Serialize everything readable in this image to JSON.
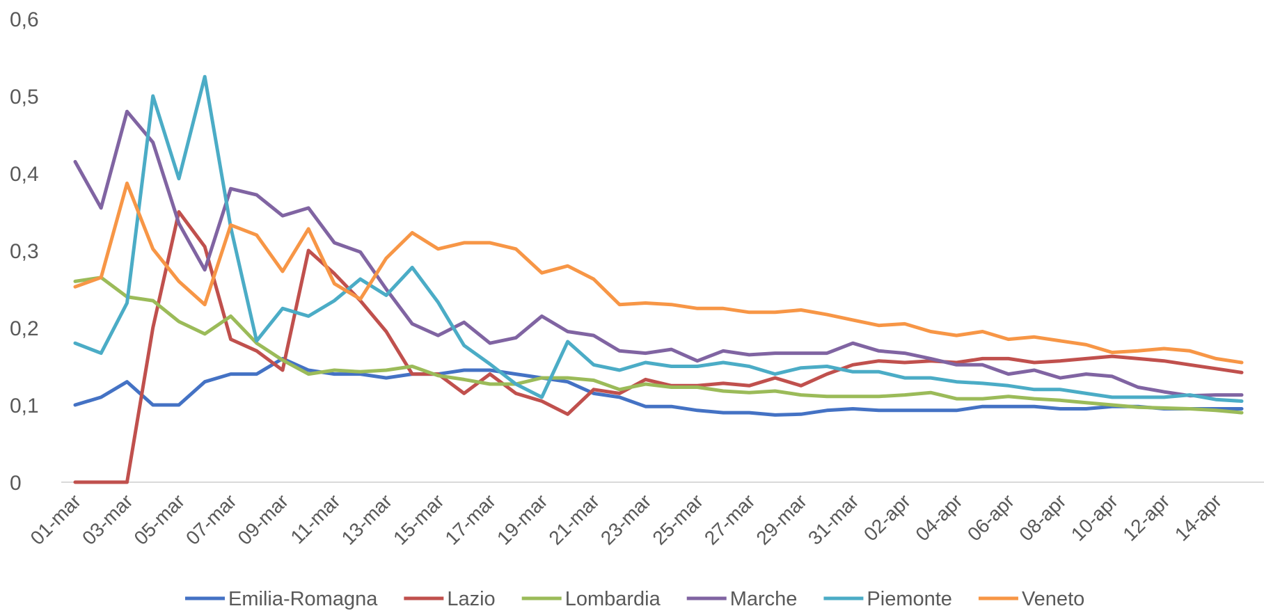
{
  "chart_data": {
    "type": "line",
    "title": "",
    "xlabel": "",
    "ylabel": "",
    "ylim": [
      0,
      0.6
    ],
    "yticks": [
      "0",
      "0,1",
      "0,2",
      "0,3",
      "0,4",
      "0,5",
      "0,6"
    ],
    "grid": false,
    "legend": "bottom",
    "x": [
      "01-mar",
      "02-mar",
      "03-mar",
      "04-mar",
      "05-mar",
      "06-mar",
      "07-mar",
      "08-mar",
      "09-mar",
      "10-mar",
      "11-mar",
      "12-mar",
      "13-mar",
      "14-mar",
      "15-mar",
      "16-mar",
      "17-mar",
      "18-mar",
      "19-mar",
      "20-mar",
      "21-mar",
      "22-mar",
      "23-mar",
      "24-mar",
      "25-mar",
      "26-mar",
      "27-mar",
      "28-mar",
      "29-mar",
      "30-mar",
      "31-mar",
      "01-apr",
      "02-apr",
      "03-apr",
      "04-apr",
      "05-apr",
      "06-apr",
      "07-apr",
      "08-apr",
      "09-apr",
      "10-apr",
      "11-apr",
      "12-apr",
      "13-apr",
      "14-apr",
      "15-apr"
    ],
    "xtick_labels": [
      "01-mar",
      "03-mar",
      "05-mar",
      "07-mar",
      "09-mar",
      "11-mar",
      "13-mar",
      "15-mar",
      "17-mar",
      "19-mar",
      "21-mar",
      "23-mar",
      "25-mar",
      "27-mar",
      "29-mar",
      "31-mar",
      "02-apr",
      "04-apr",
      "06-apr",
      "08-apr",
      "10-apr",
      "12-apr",
      "14-apr"
    ],
    "series": [
      {
        "name": "Emilia-Romagna",
        "color": "#4472C4",
        "values": [
          0.1,
          0.11,
          0.13,
          0.1,
          0.1,
          0.13,
          0.14,
          0.14,
          0.16,
          0.145,
          0.14,
          0.14,
          0.135,
          0.14,
          0.14,
          0.145,
          0.145,
          0.14,
          0.135,
          0.13,
          0.115,
          0.11,
          0.098,
          0.098,
          0.093,
          0.09,
          0.09,
          0.087,
          0.088,
          0.093,
          0.095,
          0.093,
          0.093,
          0.093,
          0.093,
          0.098,
          0.098,
          0.098,
          0.095,
          0.095,
          0.098,
          0.098,
          0.095,
          0.095,
          0.095,
          0.095
        ]
      },
      {
        "name": "Lazio",
        "color": "#C0504D",
        "values": [
          0,
          0,
          0,
          0.2,
          0.35,
          0.305,
          0.185,
          0.17,
          0.145,
          0.3,
          0.27,
          0.235,
          0.195,
          0.14,
          0.14,
          0.115,
          0.14,
          0.115,
          0.105,
          0.088,
          0.12,
          0.115,
          0.133,
          0.125,
          0.125,
          0.128,
          0.125,
          0.135,
          0.125,
          0.14,
          0.152,
          0.157,
          0.155,
          0.157,
          0.155,
          0.16,
          0.16,
          0.155,
          0.157,
          0.16,
          0.163,
          0.16,
          0.157,
          0.152,
          0.147,
          0.142
        ]
      },
      {
        "name": "Lombardia",
        "color": "#9BBB59",
        "values": [
          0.26,
          0.265,
          0.24,
          0.235,
          0.208,
          0.192,
          0.215,
          0.18,
          0.158,
          0.14,
          0.145,
          0.143,
          0.145,
          0.15,
          0.138,
          0.133,
          0.127,
          0.127,
          0.135,
          0.135,
          0.132,
          0.12,
          0.127,
          0.123,
          0.123,
          0.118,
          0.116,
          0.118,
          0.113,
          0.111,
          0.111,
          0.111,
          0.113,
          0.116,
          0.108,
          0.108,
          0.111,
          0.108,
          0.106,
          0.103,
          0.1,
          0.097,
          0.096,
          0.095,
          0.093,
          0.09
        ]
      },
      {
        "name": "Marche",
        "color": "#8064A2",
        "values": [
          0.415,
          0.355,
          0.48,
          0.44,
          0.335,
          0.275,
          0.38,
          0.372,
          0.345,
          0.355,
          0.31,
          0.298,
          0.25,
          0.205,
          0.19,
          0.207,
          0.18,
          0.187,
          0.215,
          0.195,
          0.19,
          0.17,
          0.167,
          0.172,
          0.157,
          0.17,
          0.165,
          0.167,
          0.167,
          0.167,
          0.18,
          0.17,
          0.167,
          0.16,
          0.152,
          0.152,
          0.14,
          0.145,
          0.135,
          0.14,
          0.137,
          0.123,
          0.117,
          0.112,
          0.113,
          0.113
        ]
      },
      {
        "name": "Piemonte",
        "color": "#4BACC6",
        "values": [
          0.18,
          0.167,
          0.232,
          0.5,
          0.393,
          0.525,
          0.33,
          0.183,
          0.225,
          0.215,
          0.235,
          0.263,
          0.242,
          0.278,
          0.233,
          0.177,
          0.153,
          0.127,
          0.11,
          0.182,
          0.152,
          0.145,
          0.155,
          0.15,
          0.15,
          0.155,
          0.15,
          0.14,
          0.148,
          0.15,
          0.143,
          0.143,
          0.135,
          0.135,
          0.13,
          0.128,
          0.125,
          0.12,
          0.12,
          0.115,
          0.11,
          0.11,
          0.11,
          0.113,
          0.107,
          0.105
        ]
      },
      {
        "name": "Veneto",
        "color": "#F79646",
        "values": [
          0.253,
          0.265,
          0.387,
          0.302,
          0.26,
          0.23,
          0.333,
          0.32,
          0.273,
          0.328,
          0.257,
          0.237,
          0.29,
          0.323,
          0.302,
          0.31,
          0.31,
          0.302,
          0.271,
          0.28,
          0.263,
          0.23,
          0.232,
          0.23,
          0.225,
          0.225,
          0.22,
          0.22,
          0.223,
          0.217,
          0.21,
          0.203,
          0.205,
          0.195,
          0.19,
          0.195,
          0.185,
          0.188,
          0.183,
          0.178,
          0.168,
          0.17,
          0.173,
          0.17,
          0.16,
          0.155
        ]
      }
    ]
  }
}
